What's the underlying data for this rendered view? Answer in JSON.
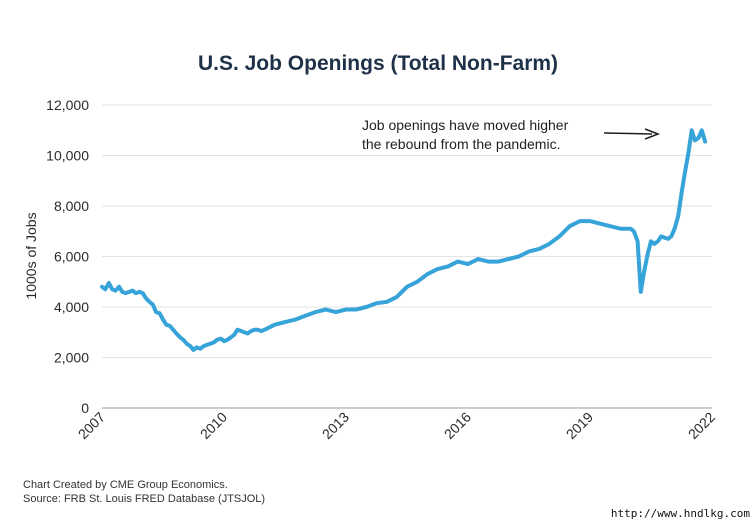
{
  "chart_data": {
    "type": "line",
    "title": "U.S. Job Openings (Total Non-Farm)",
    "ylabel": "1000s of Jobs",
    "xlabel": "",
    "ylim": [
      0,
      12000
    ],
    "yticks": [
      0,
      2000,
      4000,
      6000,
      8000,
      10000,
      12000
    ],
    "ytick_labels": [
      "0",
      "2,000",
      "4,000",
      "6,000",
      "8,000",
      "10,000",
      "12,000"
    ],
    "xlim": [
      2007.0,
      2022.0
    ],
    "xticks": [
      2007,
      2010,
      2013,
      2016,
      2019,
      2022
    ],
    "xtick_labels": [
      "2007",
      "2010",
      "2013",
      "2016",
      "2019",
      "2022"
    ],
    "grid": "horizontal",
    "line_color": "#36a3d9",
    "annotation": {
      "line1": "Job openings have moved higher",
      "line2": "the rebound from the pandemic."
    },
    "series": [
      {
        "x": [
          2007.0,
          2007.08,
          2007.17,
          2007.25,
          2007.33,
          2007.42,
          2007.5,
          2007.58,
          2007.67,
          2007.75,
          2007.83,
          2007.92,
          2008.0,
          2008.08,
          2008.17,
          2008.25,
          2008.33,
          2008.42,
          2008.5,
          2008.58,
          2008.67,
          2008.75,
          2008.83,
          2008.92,
          2009.0,
          2009.08,
          2009.17,
          2009.25,
          2009.33,
          2009.42,
          2009.5,
          2009.58,
          2009.67,
          2009.75,
          2009.83,
          2009.92,
          2010.0,
          2010.08,
          2010.17,
          2010.25,
          2010.33,
          2010.42,
          2010.5,
          2010.58,
          2010.67,
          2010.75,
          2010.83,
          2010.92,
          2011.0,
          2011.25,
          2011.5,
          2011.75,
          2012.0,
          2012.25,
          2012.5,
          2012.75,
          2013.0,
          2013.25,
          2013.5,
          2013.75,
          2014.0,
          2014.25,
          2014.5,
          2014.75,
          2015.0,
          2015.25,
          2015.5,
          2015.75,
          2016.0,
          2016.25,
          2016.5,
          2016.75,
          2017.0,
          2017.25,
          2017.5,
          2017.75,
          2018.0,
          2018.25,
          2018.5,
          2018.75,
          2019.0,
          2019.25,
          2019.5,
          2019.75,
          2020.0,
          2020.08,
          2020.17,
          2020.25,
          2020.33,
          2020.42,
          2020.5,
          2020.58,
          2020.67,
          2020.75,
          2020.83,
          2020.92,
          2021.0,
          2021.08,
          2021.17,
          2021.25,
          2021.33,
          2021.42,
          2021.5,
          2021.58,
          2021.67,
          2021.75,
          2021.83
        ],
        "y": [
          4800,
          4700,
          4950,
          4700,
          4650,
          4800,
          4600,
          4550,
          4600,
          4650,
          4550,
          4600,
          4550,
          4350,
          4200,
          4100,
          3800,
          3750,
          3500,
          3300,
          3250,
          3100,
          2950,
          2800,
          2700,
          2550,
          2450,
          2300,
          2400,
          2350,
          2450,
          2500,
          2550,
          2600,
          2700,
          2750,
          2650,
          2700,
          2800,
          2900,
          3100,
          3050,
          3000,
          2950,
          3050,
          3100,
          3100,
          3050,
          3100,
          3300,
          3400,
          3500,
          3650,
          3800,
          3900,
          3800,
          3900,
          3900,
          4000,
          4150,
          4200,
          4400,
          4800,
          5000,
          5300,
          5500,
          5600,
          5800,
          5700,
          5900,
          5800,
          5800,
          5900,
          6000,
          6200,
          6300,
          6500,
          6800,
          7200,
          7400,
          7400,
          7300,
          7200,
          7100,
          7100,
          7000,
          6600,
          4600,
          5400,
          6100,
          6600,
          6500,
          6600,
          6800,
          6750,
          6700,
          6800,
          7100,
          7600,
          8500,
          9300,
          10100,
          11000,
          10600,
          10700,
          11000,
          10550
        ]
      }
    ]
  },
  "footer": {
    "line1": "Chart Created by CME Group Economics.",
    "line2": "Source: FRB St. Louis FRED Database (JTSJOL)"
  },
  "watermark": "http://www.hndlkg.com"
}
